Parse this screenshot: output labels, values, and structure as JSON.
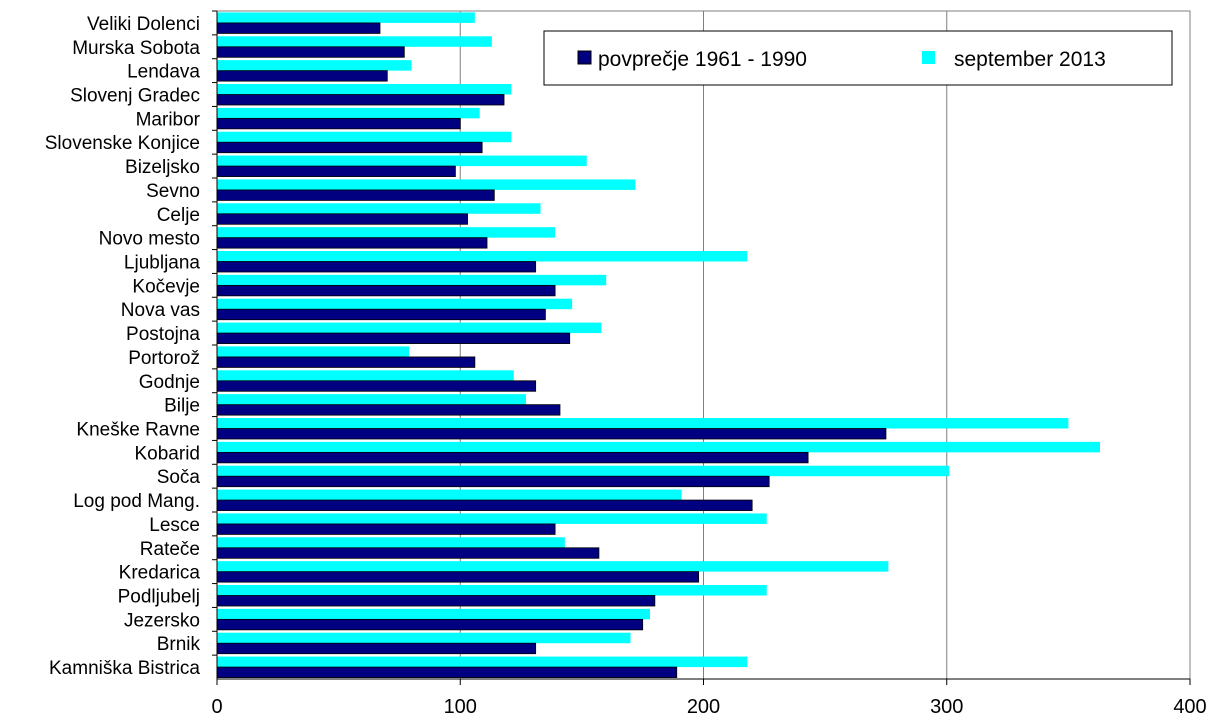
{
  "chart_data": {
    "type": "bar",
    "orientation": "horizontal",
    "title": "",
    "xlabel": "",
    "ylabel": "",
    "xlim": [
      0,
      400
    ],
    "x_ticks": [
      0,
      100,
      200,
      300,
      400
    ],
    "grid": "vertical gridlines",
    "legend_position": "top-right",
    "categories": [
      "Veliki Dolenci",
      "Murska Sobota",
      "Lendava",
      "Slovenj Gradec",
      "Maribor",
      "Slovenske Konjice",
      "Bizeljsko",
      "Sevno",
      "Celje",
      "Novo mesto",
      "Ljubljana",
      "Kočevje",
      "Nova vas",
      "Postojna",
      "Portorož",
      "Godnje",
      "Bilje",
      "Kneške Ravne",
      "Kobarid",
      "Soča",
      "Log pod Mang.",
      "Lesce",
      "Rateče",
      "Kredarica",
      "Podljubelj",
      "Jezersko",
      "Brnik",
      "Kamniška Bistrica"
    ],
    "series": [
      {
        "name": "september 2013",
        "color": "#00ffff",
        "values": [
          106,
          113,
          80,
          121,
          108,
          121,
          152,
          172,
          133,
          139,
          218,
          160,
          146,
          158,
          79,
          122,
          127,
          350,
          363,
          301,
          191,
          226,
          143,
          276,
          226,
          178,
          170,
          218
        ]
      },
      {
        "name": "povprečje 1961 - 1990",
        "color": "#000080",
        "values": [
          67,
          77,
          70,
          118,
          100,
          109,
          98,
          114,
          103,
          111,
          131,
          139,
          135,
          145,
          106,
          131,
          141,
          275,
          243,
          227,
          220,
          139,
          157,
          198,
          180,
          175,
          131,
          189
        ]
      }
    ]
  },
  "legend": {
    "items": [
      {
        "label": "povprečje 1961 - 1990",
        "color": "#000080"
      },
      {
        "label": "september 2013",
        "color": "#00ffff"
      }
    ]
  },
  "colors": {
    "plot_border": "#808080",
    "gridline": "#808080"
  }
}
